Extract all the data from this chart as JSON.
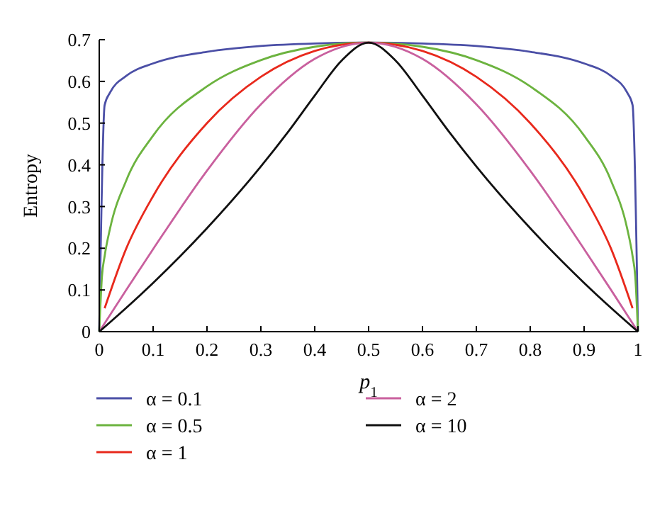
{
  "chart_data": {
    "type": "line",
    "xlabel": "p$_{1}$",
    "ylabel": "Entropy",
    "xlim": [
      0,
      1
    ],
    "xticks": [
      0,
      0.1,
      0.2,
      0.3,
      0.4,
      0.5,
      0.6,
      0.7,
      0.8,
      0.9,
      1
    ],
    "ylim": [
      0,
      0.7
    ],
    "yticks": [
      0,
      0.1,
      0.2,
      0.3,
      0.4,
      0.5,
      0.6,
      0.7
    ],
    "grid": false,
    "legend": "bottom",
    "marker": "none",
    "line_style": "solid",
    "series": [
      {
        "name": "α = 0.1",
        "color": "#4b4fa6",
        "x": [
          0,
          0.01,
          0.02,
          0.05,
          0.1,
          0.2,
          0.3,
          0.4,
          0.5,
          0.6,
          0.7,
          0.8,
          0.9,
          0.95,
          0.98,
          0.99,
          1
        ],
        "values": [
          0,
          0.543,
          0.573,
          0.613,
          0.643,
          0.671,
          0.685,
          0.691,
          0.693,
          0.691,
          0.685,
          0.671,
          0.643,
          0.613,
          0.573,
          0.543,
          0
        ]
      },
      {
        "name": "α = 0.5",
        "color": "#6cb33f",
        "x": [
          0,
          0.005,
          0.01,
          0.02,
          0.05,
          0.1,
          0.2,
          0.3,
          0.4,
          0.5,
          0.6,
          0.7,
          0.8,
          0.9,
          0.95,
          0.98,
          0.99,
          0.995,
          1
        ],
        "values": [
          0,
          0.132,
          0.181,
          0.247,
          0.362,
          0.47,
          0.588,
          0.651,
          0.683,
          0.693,
          0.683,
          0.651,
          0.588,
          0.47,
          0.362,
          0.247,
          0.181,
          0.132,
          0
        ]
      },
      {
        "name": "α = 1",
        "color": "#e8291c",
        "x": [
          0.01,
          0.05,
          0.1,
          0.2,
          0.3,
          0.4,
          0.5,
          0.6,
          0.7,
          0.8,
          0.9,
          0.95,
          0.99
        ],
        "values": [
          0.056,
          0.199,
          0.325,
          0.5,
          0.611,
          0.673,
          0.693,
          0.673,
          0.611,
          0.5,
          0.325,
          0.199,
          0.056
        ]
      },
      {
        "name": "α = 2",
        "color": "#c9609e",
        "x": [
          0,
          0.05,
          0.1,
          0.2,
          0.3,
          0.4,
          0.5,
          0.6,
          0.7,
          0.8,
          0.9,
          0.95,
          1
        ],
        "values": [
          0,
          0.1,
          0.198,
          0.386,
          0.545,
          0.654,
          0.693,
          0.654,
          0.545,
          0.386,
          0.198,
          0.1,
          0
        ]
      },
      {
        "name": "α = 10",
        "color": "#111111",
        "x": [
          0,
          0.05,
          0.1,
          0.2,
          0.3,
          0.35,
          0.4,
          0.45,
          0.5,
          0.55,
          0.6,
          0.65,
          0.7,
          0.8,
          0.9,
          0.95,
          1
        ],
        "values": [
          0,
          0.057,
          0.117,
          0.248,
          0.396,
          0.478,
          0.566,
          0.65,
          0.693,
          0.65,
          0.566,
          0.478,
          0.396,
          0.248,
          0.117,
          0.057,
          0
        ]
      }
    ]
  }
}
